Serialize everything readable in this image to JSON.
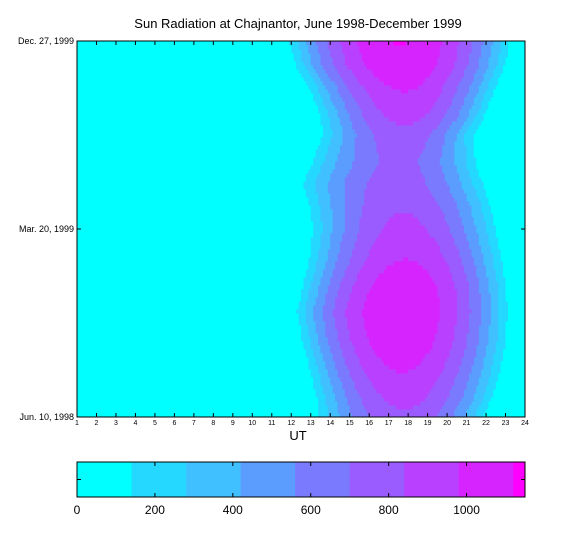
{
  "chart_data": {
    "type": "heatmap",
    "title": "Sun Radiation at Chajnantor, June 1998-December 1999",
    "xlabel": "UT",
    "ylabel": "",
    "x_range": [
      1,
      24
    ],
    "x_ticks": [
      "1",
      "2",
      "3",
      "4",
      "5",
      "6",
      "7",
      "8",
      "9",
      "10",
      "11",
      "12",
      "13",
      "14",
      "15",
      "16",
      "17",
      "18",
      "19",
      "20",
      "21",
      "22",
      "23",
      "24"
    ],
    "y_ticks": [
      {
        "label": "Jun. 10, 1998",
        "pos": 0
      },
      {
        "label": "Mar. 20, 1999",
        "pos": 0.5
      },
      {
        "label": "Dec. 27, 1999",
        "pos": 1
      }
    ],
    "colorbar": {
      "range": [
        0,
        1150
      ],
      "ticks": [
        0,
        200,
        400,
        600,
        800,
        1000
      ],
      "levels": [
        0,
        140,
        280,
        420,
        560,
        700,
        840,
        980
      ],
      "colors": [
        "#00ffff",
        "#24d8ff",
        "#40c0ff",
        "#5b9cff",
        "#7a7aff",
        "#9a5bff",
        "#b940ff",
        "#d624ff",
        "#ff00ff"
      ]
    },
    "profile": {
      "y": [
        0,
        0.05,
        0.12,
        0.2,
        0.28,
        0.35,
        0.42,
        0.5,
        0.56,
        0.62,
        0.68,
        0.75,
        0.8,
        0.88,
        0.94,
        1
      ],
      "peak_ut": [
        17.8,
        17.8,
        17.7,
        17.6,
        17.6,
        17.8,
        17.9,
        17.8,
        17.7,
        17.5,
        17.6,
        17.8,
        17.9,
        17.8,
        17.6,
        17.6
      ],
      "peak_val": [
        800,
        880,
        980,
        1080,
        1120,
        1080,
        980,
        880,
        820,
        760,
        720,
        780,
        880,
        1000,
        1100,
        1130
      ],
      "rise_ut": [
        13.1,
        13.0,
        12.7,
        12.3,
        12.0,
        12.3,
        12.6,
        12.8,
        12.6,
        12.2,
        12.7,
        13.3,
        13.2,
        12.6,
        11.9,
        11.6
      ],
      "set_ut": [
        22.2,
        22.6,
        23.0,
        23.3,
        23.4,
        23.3,
        23.1,
        22.8,
        22.6,
        22.2,
        21.8,
        21.6,
        22.2,
        22.8,
        23.3,
        23.5
      ]
    }
  }
}
